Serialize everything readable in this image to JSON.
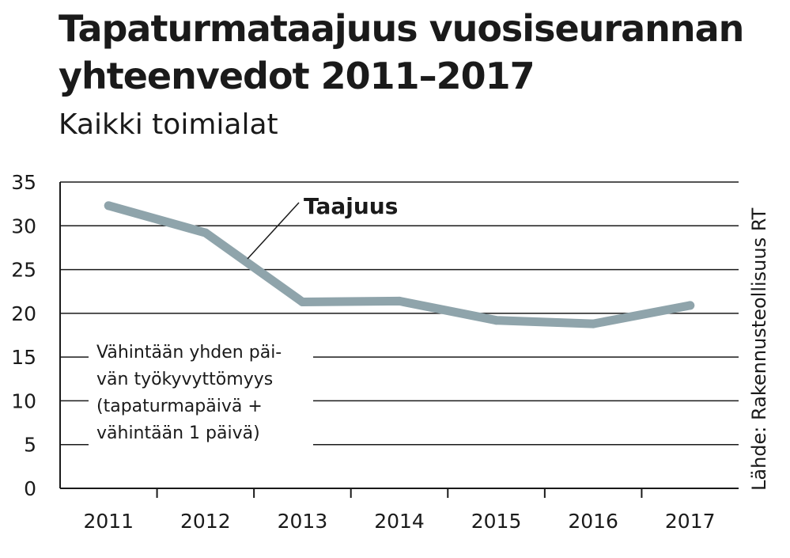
{
  "header": {
    "title_line1": "Tapaturmataajuus vuosiseurannan",
    "title_line2": "yhteenvedot 2011–2017",
    "subtitle": "Kaikki toimialat"
  },
  "source": "Lähde: Rakennusteollisuus RT",
  "colors": {
    "line": "#8fa4ab",
    "grid": "#1a1a1a"
  },
  "chart_data": {
    "type": "line",
    "title": "Tapaturmataajuus vuosiseurannan yhteenvedot 2011–2017",
    "subtitle": "Kaikki toimialat",
    "categories": [
      "2011",
      "2012",
      "2013",
      "2014",
      "2015",
      "2016",
      "2017"
    ],
    "series": [
      {
        "name": "Taajuus",
        "values": [
          32.3,
          29.2,
          21.3,
          21.4,
          19.2,
          18.8,
          20.9
        ]
      }
    ],
    "ylim": [
      0,
      35
    ],
    "yticks": [
      "0",
      "5",
      "10",
      "15",
      "20",
      "25",
      "30",
      "35"
    ],
    "grid": true,
    "annotation": [
      "Vähintään yhden päi-",
      "vän työkyvyttömyys",
      "(tapaturmapäivä +",
      "vähintään 1 päivä)"
    ]
  }
}
